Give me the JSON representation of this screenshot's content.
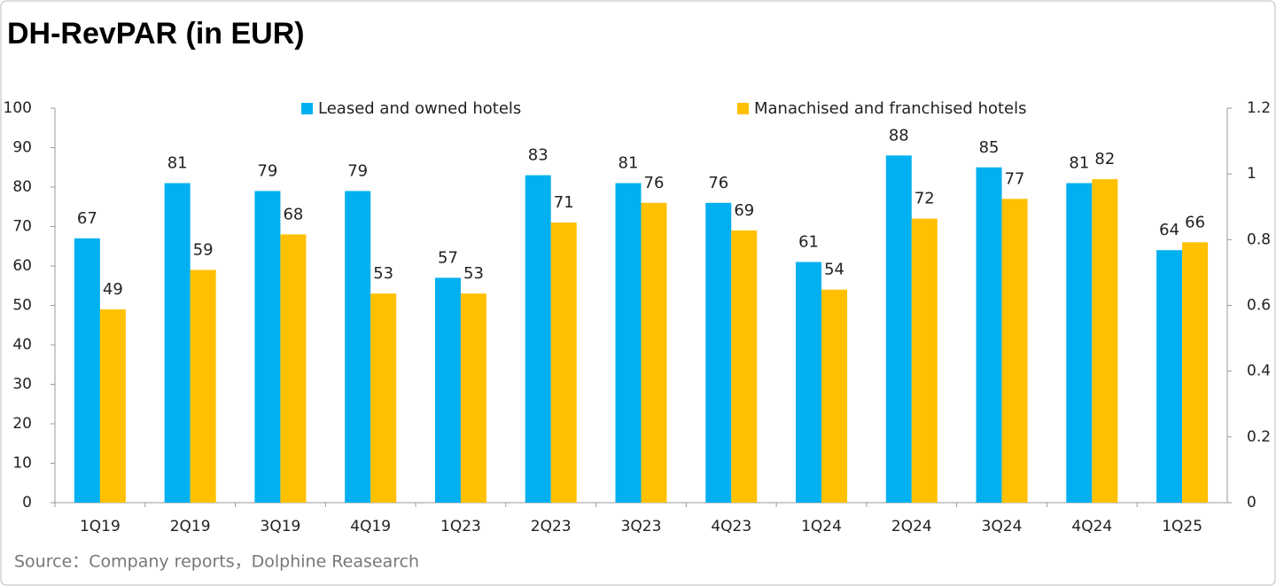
{
  "chart_data": {
    "type": "bar",
    "title": "DH-RevPAR (in EUR)",
    "categories": [
      "1Q19",
      "2Q19",
      "3Q19",
      "4Q19",
      "1Q23",
      "2Q23",
      "3Q23",
      "4Q23",
      "1Q24",
      "2Q24",
      "3Q24",
      "4Q24",
      "1Q25"
    ],
    "series": [
      {
        "name": "Leased and owned hotels",
        "color": "#00b0f0",
        "values": [
          67,
          81,
          79,
          79,
          57,
          83,
          81,
          76,
          61,
          88,
          85,
          81,
          64
        ]
      },
      {
        "name": "Manachised and franchised hotels",
        "color": "#ffc000",
        "values": [
          49,
          59,
          68,
          53,
          53,
          71,
          76,
          69,
          54,
          72,
          77,
          82,
          66
        ]
      }
    ],
    "ylim": [
      0,
      100
    ],
    "yticks": [
      0,
      10,
      20,
      30,
      40,
      50,
      60,
      70,
      80,
      90,
      100
    ],
    "y2lim": [
      0,
      1.2
    ],
    "y2ticks": [
      0,
      0.2,
      0.4,
      0.6,
      0.8,
      1,
      1.2
    ],
    "legend": "top",
    "grid": false,
    "source": "Source：Company reports，Dolphine Reasearch"
  }
}
